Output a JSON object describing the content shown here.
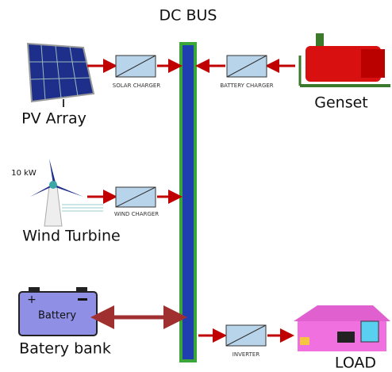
{
  "bus": {
    "label": "DC BUS"
  },
  "pv": {
    "label": "PV Array",
    "converter": "SOLAR CHARGER"
  },
  "genset": {
    "label": "Genset",
    "converter": "BATTERY CHARGER"
  },
  "wind": {
    "label": "Wind Turbine",
    "rating": "10 kW",
    "converter": "WIND CHARGER"
  },
  "battery": {
    "label": "Batery bank",
    "text": "Battery"
  },
  "load": {
    "label": "LOAD",
    "converter": "INVERTER"
  }
}
